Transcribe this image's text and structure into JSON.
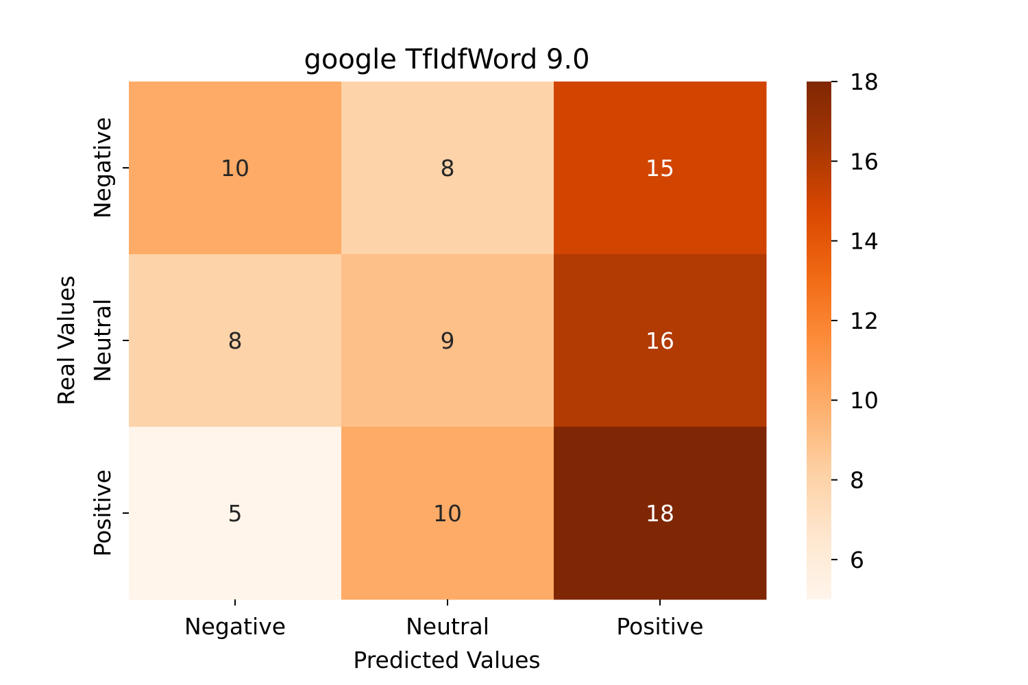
{
  "chart_data": {
    "type": "heatmap",
    "title": "google TfIdfWord 9.0",
    "xlabel": "Predicted Values",
    "ylabel": "Real Values",
    "x_categories": [
      "Negative",
      "Neutral",
      "Positive"
    ],
    "y_categories": [
      "Negative",
      "Neutral",
      "Positive"
    ],
    "values": [
      [
        10,
        8,
        15
      ],
      [
        8,
        9,
        16
      ],
      [
        5,
        10,
        18
      ]
    ],
    "colormap": "Oranges",
    "colorbar": {
      "range": [
        5,
        18
      ],
      "ticks": [
        6,
        8,
        10,
        12,
        14,
        16,
        18
      ]
    },
    "grid": false
  }
}
